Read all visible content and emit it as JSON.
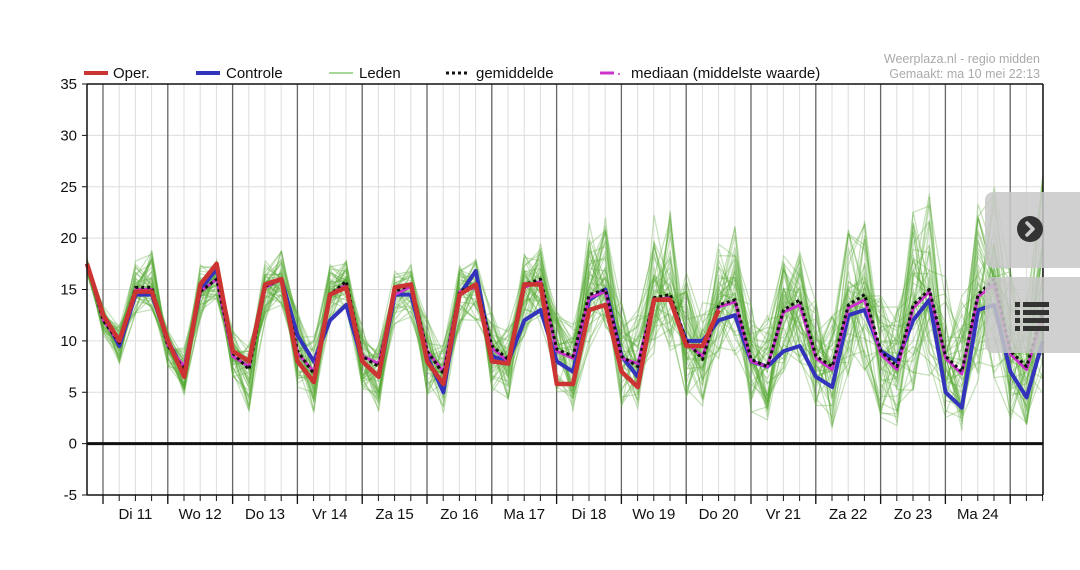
{
  "legend": {
    "oper": "Oper.",
    "controle": "Controle",
    "leden": "Leden",
    "gemiddelde": "gemiddelde",
    "mediaan": "mediaan (middelste waarde)"
  },
  "credit": {
    "line1": "Weerplaza.nl - regio midden",
    "line2": "Gemaakt: ma 10 mei 22:13"
  },
  "colors": {
    "oper": "#cc3333",
    "controle": "#3333bb",
    "leden": "#55aa33",
    "gemiddelde": "#111111",
    "mediaan": "#cc33cc"
  },
  "controls": {
    "next_icon": "chevron-right-circle-icon",
    "list_icon": "list-icon"
  },
  "chart_data": {
    "type": "line",
    "title": "",
    "xlabel": "",
    "ylabel": "",
    "ylim": [
      -5,
      35
    ],
    "yticks": [
      "35",
      "30",
      "25",
      "20",
      "15",
      "10",
      "5",
      "0",
      "-5"
    ],
    "ytick_values": [
      35,
      30,
      25,
      20,
      15,
      10,
      5,
      0,
      -5
    ],
    "xlim_steps": [
      0,
      59
    ],
    "step_hours": 6,
    "day_labels": [
      "Di 11",
      "Wo 12",
      "Do 13",
      "Vr 14",
      "Za 15",
      "Zo 16",
      "Ma 17",
      "Di 18",
      "Wo 19",
      "Do 20",
      "Vr 21",
      "Za 22",
      "Zo 23",
      "Ma 24"
    ],
    "series": [
      {
        "name": "Oper.",
        "values": [
          17.5,
          12.5,
          10,
          14.8,
          14.8,
          10,
          6.5,
          15.5,
          17.5,
          9,
          8,
          15.5,
          16,
          8,
          6,
          14.5,
          15.2,
          8,
          6.5,
          15.2,
          15.5,
          8,
          5.8,
          14.5,
          15.5,
          8,
          7.8,
          15.5,
          15.5,
          5.8,
          5.8,
          13,
          13.5,
          7,
          5.5,
          14,
          14,
          9.5,
          9.5,
          13,
          null,
          null,
          null,
          null,
          null,
          null,
          null,
          null,
          null,
          null,
          null,
          null,
          null,
          null,
          null,
          null,
          null,
          null,
          null,
          null
        ]
      },
      {
        "name": "Controle",
        "values": [
          17.5,
          12.5,
          9.5,
          14.5,
          14.5,
          10,
          7,
          15,
          17,
          9,
          8,
          15.5,
          16,
          10.5,
          8,
          12,
          13.5,
          8,
          6.5,
          14.5,
          14.5,
          8.5,
          5,
          14.5,
          16.8,
          8.5,
          8,
          12,
          13,
          8,
          7,
          14,
          15,
          8.5,
          6.5,
          14,
          14,
          10,
          10,
          12,
          12.5,
          8,
          7.5,
          9,
          9.5,
          6.5,
          5.5,
          12.5,
          13,
          9,
          8,
          12,
          14,
          5,
          3.5,
          13,
          13.5,
          7,
          4.5,
          10
        ]
      },
      {
        "name": "gemiddelde",
        "values": [
          17.5,
          12,
          9.8,
          15.2,
          15.2,
          9.5,
          7.2,
          14.8,
          16,
          8.8,
          7.2,
          15.3,
          16,
          9,
          6.8,
          14.5,
          15.8,
          8.5,
          7.5,
          14.8,
          15.5,
          9,
          6.8,
          14.8,
          15.5,
          9.5,
          8.2,
          15.5,
          16,
          9.2,
          8.5,
          14.5,
          15,
          8.5,
          7.5,
          14.2,
          14.5,
          10,
          8.2,
          13.5,
          14,
          8.2,
          7.5,
          13,
          14,
          8.5,
          7.5,
          13.5,
          14.5,
          9,
          7.5,
          13.5,
          15,
          8.5,
          7,
          14.5,
          16,
          9,
          7.5,
          13
        ]
      },
      {
        "name": "mediaan (middelste waarde)",
        "values": [
          17.5,
          12,
          9.8,
          15,
          15,
          9.5,
          7.5,
          14.8,
          16,
          8.5,
          7.5,
          15.2,
          16,
          8.8,
          7,
          14.5,
          15.5,
          8.5,
          7.8,
          14.5,
          15.3,
          9,
          7,
          14.8,
          15.2,
          9.3,
          8,
          15.2,
          15.8,
          9,
          8.3,
          14.2,
          14.8,
          8.3,
          7.8,
          14,
          14.2,
          9.8,
          8.5,
          13.3,
          13.8,
          8,
          7.5,
          12.8,
          13.5,
          8.3,
          7.2,
          13.2,
          14,
          8.7,
          7.2,
          13.2,
          14.8,
          8.3,
          6.8,
          14.3,
          15.5,
          8.7,
          7.2,
          12.5
        ]
      }
    ],
    "members_spread": {
      "name": "Leden",
      "count": 50,
      "low": [
        16.5,
        10.5,
        7.5,
        12.5,
        13,
        7.5,
        4.5,
        12,
        14,
        6.5,
        2.5,
        12,
        13.5,
        5.5,
        3,
        11.5,
        12.5,
        5,
        3,
        11,
        12,
        4.5,
        2,
        11,
        12,
        5,
        4,
        10.5,
        11.5,
        4,
        3,
        9,
        10,
        3.5,
        3,
        8.5,
        9,
        4.5,
        3.5,
        8,
        8.5,
        3,
        2,
        7,
        7.5,
        3,
        1.5,
        6.5,
        7,
        2.5,
        1.5,
        5,
        6.5,
        2.5,
        1,
        5.5,
        6,
        2,
        1.5,
        4
      ],
      "high": [
        18,
        13.5,
        11.5,
        18,
        19,
        11,
        9.5,
        17.5,
        18,
        11.5,
        10,
        18,
        19,
        13,
        10.5,
        17.5,
        18,
        12,
        10,
        17,
        17.5,
        12.5,
        10,
        17.5,
        18,
        13,
        11.5,
        18.5,
        20,
        13,
        12,
        21.5,
        22.5,
        14,
        13,
        22.5,
        22.8,
        17.5,
        14,
        19.5,
        21.5,
        14,
        13,
        18.5,
        19,
        14,
        12.5,
        21,
        22,
        15,
        14,
        23,
        25,
        16.5,
        15,
        24.5,
        25.5,
        17,
        15,
        27
      ]
    }
  }
}
